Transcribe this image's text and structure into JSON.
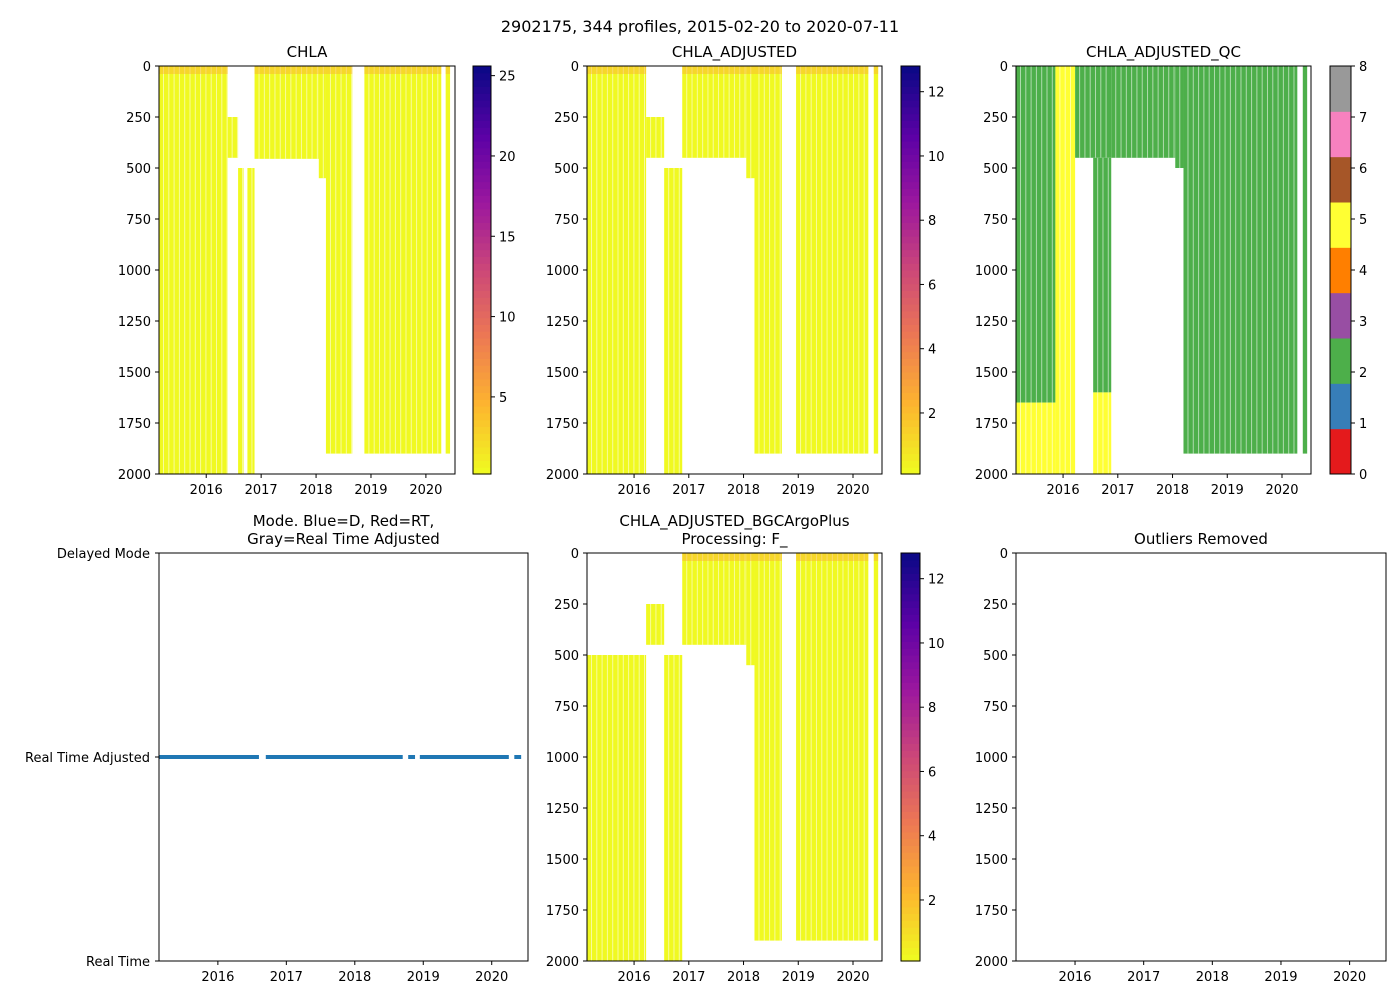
{
  "figure": {
    "suptitle": "2902175, 344 profiles, 2015-02-20 to 2020-07-11"
  },
  "chart_data": [
    {
      "id": "chla",
      "type": "heatmap",
      "title": "CHLA",
      "xlabel": "",
      "ylabel": "",
      "xlim": [
        2015.14,
        2020.53
      ],
      "ylim": [
        2000,
        0
      ],
      "xticks": [
        "2016",
        "2017",
        "2018",
        "2019",
        "2020"
      ],
      "yticks": [
        "0",
        "250",
        "500",
        "750",
        "1000",
        "1250",
        "1500",
        "1750",
        "2000"
      ],
      "colorbar": {
        "cmap": "plasma_r",
        "range": [
          0.2,
          25.6
        ],
        "ticks": [
          "5",
          "10",
          "15",
          "20",
          "25"
        ]
      },
      "colors": {
        "data": "#f0f921",
        "surface_high": "#fdae32"
      },
      "profiles": [
        {
          "x0": 2015.14,
          "x1": 2016.39,
          "top": 0,
          "bottom": 2000
        },
        {
          "x0": 2016.39,
          "x1": 2016.58,
          "top": 250,
          "bottom": 450
        },
        {
          "x0": 2016.58,
          "x1": 2016.68,
          "top": 500,
          "bottom": 2000
        },
        {
          "x0": 2016.75,
          "x1": 2016.88,
          "top": 500,
          "bottom": 2000
        },
        {
          "x0": 2016.88,
          "x1": 2018.05,
          "top": 0,
          "bottom": 455
        },
        {
          "x0": 2018.05,
          "x1": 2018.18,
          "top": 0,
          "bottom": 550
        },
        {
          "x0": 2018.18,
          "x1": 2018.66,
          "top": 0,
          "bottom": 1900
        },
        {
          "x0": 2018.88,
          "x1": 2020.28,
          "top": 0,
          "bottom": 1900
        },
        {
          "x0": 2020.36,
          "x1": 2020.44,
          "top": 0,
          "bottom": 1900
        }
      ]
    },
    {
      "id": "chla_adjusted",
      "type": "heatmap",
      "title": "CHLA_ADJUSTED",
      "xlabel": "",
      "ylabel": "",
      "xlim": [
        2015.14,
        2020.53
      ],
      "ylim": [
        2000,
        0
      ],
      "xticks": [
        "2016",
        "2017",
        "2018",
        "2019",
        "2020"
      ],
      "yticks": [
        "0",
        "250",
        "500",
        "750",
        "1000",
        "1250",
        "1500",
        "1750",
        "2000"
      ],
      "colorbar": {
        "cmap": "plasma_r",
        "range": [
          0.1,
          12.8
        ],
        "ticks": [
          "2",
          "4",
          "6",
          "8",
          "10",
          "12"
        ]
      },
      "colors": {
        "data": "#f0f921",
        "surface_high": "#fdae32"
      },
      "profiles": [
        {
          "x0": 2015.14,
          "x1": 2016.22,
          "top": 0,
          "bottom": 2000
        },
        {
          "x0": 2016.22,
          "x1": 2016.55,
          "top": 250,
          "bottom": 450
        },
        {
          "x0": 2016.55,
          "x1": 2016.88,
          "top": 500,
          "bottom": 2000
        },
        {
          "x0": 2016.88,
          "x1": 2018.05,
          "top": 0,
          "bottom": 450
        },
        {
          "x0": 2018.05,
          "x1": 2018.2,
          "top": 0,
          "bottom": 550
        },
        {
          "x0": 2018.2,
          "x1": 2018.7,
          "top": 0,
          "bottom": 1900
        },
        {
          "x0": 2018.96,
          "x1": 2020.28,
          "top": 0,
          "bottom": 1900
        },
        {
          "x0": 2020.38,
          "x1": 2020.46,
          "top": 0,
          "bottom": 1900
        }
      ]
    },
    {
      "id": "chla_adjusted_qc",
      "type": "heatmap",
      "title": "CHLA_ADJUSTED_QC",
      "xlabel": "",
      "ylabel": "",
      "xlim": [
        2015.14,
        2020.53
      ],
      "ylim": [
        2000,
        0
      ],
      "xticks": [
        "2016",
        "2017",
        "2018",
        "2019",
        "2020"
      ],
      "yticks": [
        "0",
        "250",
        "500",
        "750",
        "1000",
        "1250",
        "1500",
        "1750",
        "2000"
      ],
      "colorbar": {
        "cmap": "qualitative",
        "range": [
          0,
          8
        ],
        "ticks": [
          "0",
          "1",
          "2",
          "3",
          "4",
          "5",
          "6",
          "7",
          "8"
        ],
        "classes": [
          "#e41a1c",
          "#377eb8",
          "#4daf4a",
          "#984ea3",
          "#ff7f00",
          "#ffff33",
          "#a65628",
          "#f781bf",
          "#999999"
        ]
      },
      "colors": {
        "good": "#4daf4a",
        "probably_bad": "#ffff33",
        "bad": "#ff7f00"
      },
      "profiles": [
        {
          "x0": 2015.14,
          "x1": 2015.86,
          "top": 0,
          "bottom": 1650,
          "qc": 2
        },
        {
          "x0": 2015.14,
          "x1": 2015.86,
          "top": 1650,
          "bottom": 2000,
          "qc": 5
        },
        {
          "x0": 2015.86,
          "x1": 2016.22,
          "top": 0,
          "bottom": 2000,
          "qc": 5
        },
        {
          "x0": 2016.22,
          "x1": 2016.88,
          "top": 0,
          "bottom": 450,
          "qc": 2
        },
        {
          "x0": 2016.55,
          "x1": 2016.88,
          "top": 450,
          "bottom": 1600,
          "qc": 2
        },
        {
          "x0": 2016.55,
          "x1": 2016.88,
          "top": 1600,
          "bottom": 2000,
          "qc": 5
        },
        {
          "x0": 2016.88,
          "x1": 2018.05,
          "top": 0,
          "bottom": 450,
          "qc": 2
        },
        {
          "x0": 2018.05,
          "x1": 2018.2,
          "top": 0,
          "bottom": 500,
          "qc": 2
        },
        {
          "x0": 2018.2,
          "x1": 2020.28,
          "top": 0,
          "bottom": 1900,
          "qc": 2
        },
        {
          "x0": 2020.38,
          "x1": 2020.46,
          "top": 0,
          "bottom": 1900,
          "qc": 2
        }
      ]
    },
    {
      "id": "mode",
      "type": "scatter",
      "title": "Mode. Blue=D, Red=RT,",
      "title2": "Gray=Real Time Adjusted",
      "xlabel": "",
      "ylabel": "",
      "xlim": [
        2015.14,
        2020.53
      ],
      "ylim": [
        0,
        2
      ],
      "xticks": [
        "2016",
        "2017",
        "2018",
        "2019",
        "2020"
      ],
      "yticks": [
        "Delayed Mode",
        "Real Time Adjusted",
        "Real Time"
      ],
      "colors": {
        "marker": "#1f77b4"
      },
      "series": [
        {
          "name": "Real Time Adjusted",
          "y": 1,
          "x_from": 2015.14,
          "x_to": 2020.43,
          "gaps": [
            [
              2016.6,
              2016.7
            ],
            [
              2018.7,
              2018.78
            ],
            [
              2018.88,
              2018.95
            ],
            [
              2020.25,
              2020.33
            ]
          ]
        }
      ]
    },
    {
      "id": "chla_adjusted_bgcargoplus",
      "type": "heatmap",
      "title": "CHLA_ADJUSTED_BGCArgoPlus",
      "title2": "Processing: F_",
      "xlabel": "",
      "ylabel": "",
      "xlim": [
        2015.14,
        2020.53
      ],
      "ylim": [
        2000,
        0
      ],
      "xticks": [
        "2016",
        "2017",
        "2018",
        "2019",
        "2020"
      ],
      "yticks": [
        "0",
        "250",
        "500",
        "750",
        "1000",
        "1250",
        "1500",
        "1750",
        "2000"
      ],
      "colorbar": {
        "cmap": "plasma_r",
        "range": [
          0.1,
          12.8
        ],
        "ticks": [
          "2",
          "4",
          "6",
          "8",
          "10",
          "12"
        ]
      },
      "colors": {
        "data": "#f0f921",
        "surface_high": "#fdae32"
      },
      "profiles": [
        {
          "x0": 2015.14,
          "x1": 2016.22,
          "top": 500,
          "bottom": 2000
        },
        {
          "x0": 2016.22,
          "x1": 2016.55,
          "top": 250,
          "bottom": 450
        },
        {
          "x0": 2016.55,
          "x1": 2016.88,
          "top": 500,
          "bottom": 2000
        },
        {
          "x0": 2016.88,
          "x1": 2018.05,
          "top": 0,
          "bottom": 450
        },
        {
          "x0": 2018.05,
          "x1": 2018.2,
          "top": 0,
          "bottom": 550
        },
        {
          "x0": 2018.2,
          "x1": 2018.7,
          "top": 0,
          "bottom": 1900
        },
        {
          "x0": 2018.96,
          "x1": 2020.28,
          "top": 0,
          "bottom": 1900
        },
        {
          "x0": 2020.38,
          "x1": 2020.46,
          "top": 0,
          "bottom": 1900
        }
      ]
    },
    {
      "id": "outliers_removed",
      "type": "scatter",
      "title": "Outliers Removed",
      "xlabel": "",
      "ylabel": "",
      "xlim": [
        2015.14,
        2020.53
      ],
      "ylim": [
        2000,
        0
      ],
      "xticks": [
        "2016",
        "2017",
        "2018",
        "2019",
        "2020"
      ],
      "yticks": [
        "0",
        "250",
        "500",
        "750",
        "1000",
        "1250",
        "1500",
        "1750",
        "2000"
      ],
      "series": []
    }
  ]
}
